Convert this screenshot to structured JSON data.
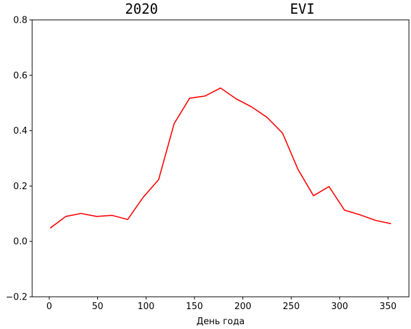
{
  "chart_data": {
    "type": "line",
    "title": "2020                EVI",
    "xlabel": "День года",
    "ylabel": "",
    "xlim": [
      -17.6,
      371.6
    ],
    "ylim": [
      -0.2,
      0.8
    ],
    "x_ticks": [
      0,
      50,
      100,
      150,
      200,
      250,
      300,
      350
    ],
    "y_ticks": [
      -0.2,
      0.0,
      0.2,
      0.4,
      0.6,
      0.8
    ],
    "grid": false,
    "series": [
      {
        "color": "#ff0000",
        "x": [
          1,
          17,
          33,
          49,
          65,
          81,
          97,
          113,
          129,
          145,
          161,
          177,
          193,
          209,
          225,
          241,
          257,
          273,
          289,
          305,
          321,
          337,
          353
        ],
        "y": [
          0.048,
          0.09,
          0.101,
          0.09,
          0.094,
          0.079,
          0.159,
          0.223,
          0.425,
          0.517,
          0.525,
          0.554,
          0.515,
          0.486,
          0.448,
          0.391,
          0.26,
          0.165,
          0.198,
          0.113,
          0.096,
          0.076,
          0.064
        ]
      }
    ]
  }
}
